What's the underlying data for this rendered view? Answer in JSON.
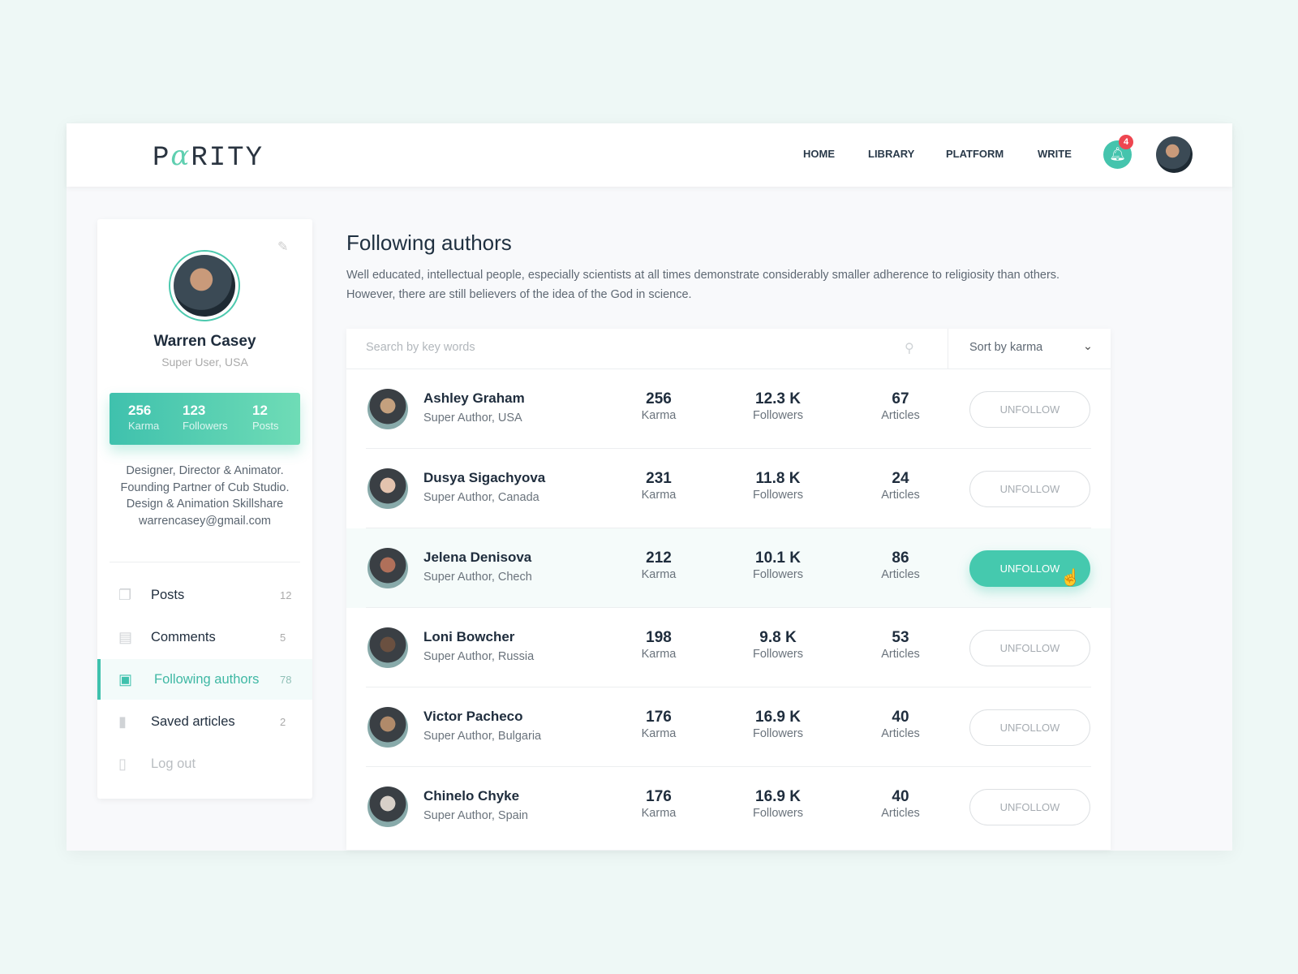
{
  "brand": {
    "logo_prefix": "P",
    "logo_alpha": "α",
    "logo_suffix": "RITY",
    "accent": "#45c4ad"
  },
  "nav": {
    "items": [
      "HOME",
      "LIBRARY",
      "PLATFORM",
      "WRITE"
    ],
    "notification_count": "4"
  },
  "profile": {
    "name": "Warren Casey",
    "subtitle": "Super User, USA",
    "stats": [
      {
        "value": "256",
        "label": "Karma"
      },
      {
        "value": "123",
        "label": "Followers"
      },
      {
        "value": "12",
        "label": "Posts"
      }
    ],
    "bio": [
      "Designer, Director & Animator.",
      "Founding Partner of Cub Studio.",
      "Design & Animation Skillshare",
      "warrencasey@gmail.com"
    ]
  },
  "menu": [
    {
      "label": "Posts",
      "count": "12",
      "icon": "documents-icon"
    },
    {
      "label": "Comments",
      "count": "5",
      "icon": "comments-icon"
    },
    {
      "label": "Following authors",
      "count": "78",
      "icon": "user-badge-icon",
      "active": true
    },
    {
      "label": "Saved articles",
      "count": "2",
      "icon": "bookmark-icon"
    },
    {
      "label": "Log out",
      "count": "",
      "icon": "door-icon"
    }
  ],
  "main": {
    "title": "Following authors",
    "description": "Well educated, intellectual people, especially scientists at all times demonstrate considerably smaller adherence to religiosity than others. However, there are still believers of the idea of the God in science.",
    "search_placeholder": "Search by key words",
    "sort_label": "Sort by karma",
    "labels": {
      "karma": "Karma",
      "followers": "Followers",
      "articles": "Articles",
      "button": "UNFOLLOW"
    },
    "authors": [
      {
        "name": "Ashley Graham",
        "location": "Super Author, USA",
        "karma": "256",
        "followers": "12.3 K",
        "articles": "67"
      },
      {
        "name": "Dusya Sigachyova",
        "location": "Super Author, Canada",
        "karma": "231",
        "followers": "11.8 K",
        "articles": "24"
      },
      {
        "name": "Jelena Denisova",
        "location": "Super Author, Chech",
        "karma": "212",
        "followers": "10.1 K",
        "articles": "86"
      },
      {
        "name": "Loni Bowcher",
        "location": "Super Author, Russia",
        "karma": "198",
        "followers": "9.8 K",
        "articles": "53"
      },
      {
        "name": "Victor Pacheco",
        "location": "Super Author, Bulgaria",
        "karma": "176",
        "followers": "16.9 K",
        "articles": "40"
      },
      {
        "name": "Chinelo Chyke",
        "location": "Super Author, Spain",
        "karma": "176",
        "followers": "16.9 K",
        "articles": "40"
      }
    ]
  }
}
